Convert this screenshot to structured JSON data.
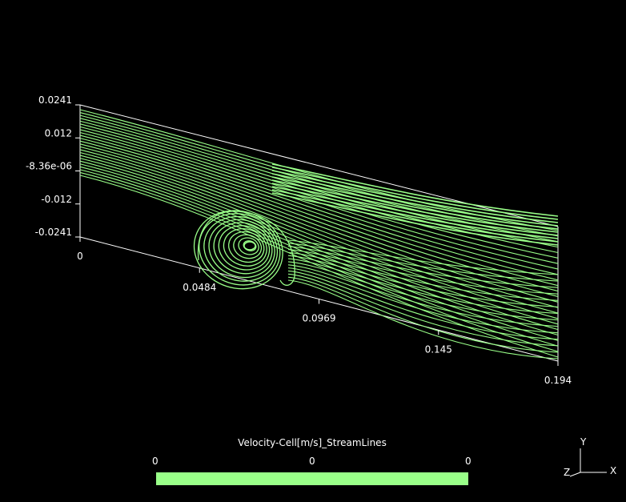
{
  "chart_data": {
    "type": "streamlines",
    "colors": {
      "background": "#000000",
      "streamline": "#99ff88",
      "axis": "#ffffff"
    },
    "y_ticks": [
      "0.0241",
      "0.012",
      "-8.36e-06",
      "-0.012",
      "-0.0241"
    ],
    "x_ticks": [
      "0",
      "0.0484",
      "0.0969",
      "0.145",
      "0.194"
    ],
    "y_range": [
      -0.0241,
      0.0241
    ],
    "x_range": [
      0,
      0.194
    ],
    "legend": {
      "title": "Velocity-Cell[m/s]_StreamLines",
      "labels": [
        "0",
        "0",
        "0"
      ]
    },
    "orientation_axes": {
      "y": "Y",
      "x": "X",
      "z": "Z"
    }
  }
}
